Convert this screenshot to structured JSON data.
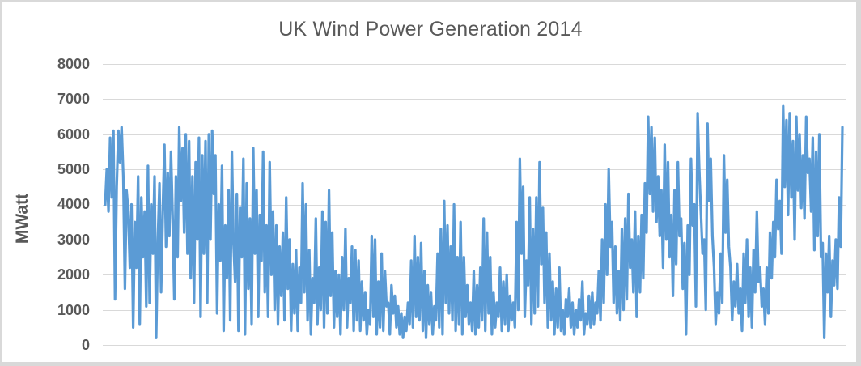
{
  "chart_data": {
    "type": "line",
    "title": "UK Wind Power Generation 2014",
    "xlabel": "",
    "ylabel": "MWatt",
    "ylim": [
      0,
      8000
    ],
    "yticks": [
      0,
      1000,
      2000,
      3000,
      4000,
      5000,
      6000,
      7000,
      8000
    ],
    "grid": true,
    "legend": "none",
    "line_color": "#5b9bd5",
    "x_description": "Time through 2014 (Jan to Dec), no x tick labels shown",
    "series": [
      {
        "name": "MWatt",
        "values": [
          4000,
          5000,
          3800,
          5900,
          4200,
          6100,
          1300,
          4500,
          6100,
          5200,
          6200,
          4800,
          1600,
          4400,
          3800,
          2200,
          4000,
          500,
          3500,
          2200,
          4800,
          600,
          4200,
          2500,
          3800,
          1100,
          5100,
          1200,
          4000,
          2600,
          4800,
          200,
          3000,
          4600,
          1500,
          3800,
          5700,
          2800,
          4900,
          3100,
          5500,
          3600,
          1300,
          4800,
          2500,
          6200,
          4100,
          5600,
          3200,
          6000,
          2600,
          5800,
          1900,
          4800,
          1200,
          5200,
          3000,
          5900,
          800,
          5400,
          2600,
          5800,
          1200,
          6000,
          3000,
          6100,
          4300,
          5400,
          900,
          4000,
          2400,
          5100,
          400,
          3400,
          1900,
          4400,
          700,
          5500,
          2900,
          1800,
          4300,
          400,
          3900,
          2500,
          5300,
          300,
          4600,
          1600,
          3600,
          600,
          5600,
          2600,
          4400,
          800,
          3700,
          2400,
          5500,
          1500,
          3400,
          800,
          5200,
          2000,
          3800,
          1000,
          3400,
          600,
          2800,
          1400,
          3200,
          700,
          4200,
          1600,
          3000,
          400,
          2300,
          900,
          2700,
          400,
          2200,
          1200,
          4600,
          1500,
          4000,
          700,
          2700,
          300,
          1900,
          1200,
          3600,
          600,
          2200,
          1000,
          3800,
          500,
          3500,
          900,
          4400,
          1400,
          3200,
          500,
          2100,
          800,
          2000,
          300,
          2500,
          1000,
          3300,
          500,
          1900,
          1200,
          2800,
          400,
          2700,
          700,
          2400,
          400,
          1800,
          700,
          1500,
          300,
          1000,
          600,
          3100,
          800,
          3000,
          300,
          1800,
          500,
          2600,
          400,
          2100,
          1100,
          1200,
          300,
          1700,
          900,
          1400,
          500,
          1100,
          300,
          900,
          200,
          800,
          400,
          1200,
          600,
          2400,
          500,
          3100,
          800,
          2500,
          700,
          2900,
          400,
          2100,
          200,
          1700,
          600,
          1500,
          300,
          1100,
          700,
          2600,
          500,
          3300,
          300,
          4100,
          1200,
          3400,
          900,
          2800,
          700,
          4000,
          400,
          2500,
          600,
          3500,
          300,
          2500,
          800,
          1700,
          600,
          1200,
          400,
          2100,
          300,
          1700,
          500,
          2200,
          700,
          3600,
          400,
          3200,
          900,
          2500,
          300,
          1500,
          500,
          1200,
          800,
          2200,
          400,
          1800,
          600,
          2000,
          400,
          1400,
          700,
          1200,
          500,
          3500,
          1000,
          5300,
          2600,
          4500,
          800,
          2400,
          1700,
          4200,
          600,
          3300,
          900,
          4200,
          1100,
          5200,
          2300,
          3900,
          1200,
          3200,
          500,
          2600,
          700,
          1800,
          300,
          1600,
          500,
          2200,
          400,
          1000,
          300,
          1300,
          800,
          1600,
          500,
          1200,
          300,
          1000,
          500,
          1300,
          700,
          1800,
          300,
          900,
          600,
          1400,
          500,
          1500,
          600,
          1200,
          900,
          2100,
          700,
          3000,
          1200,
          4000,
          2000,
          5000,
          2800,
          3500,
          1200,
          2800,
          900,
          2100,
          700,
          3300,
          1000,
          3600,
          1300,
          4300,
          2200,
          3000,
          1500,
          3800,
          800,
          3100,
          1500,
          3700,
          1900,
          4600,
          3200,
          6500,
          4300,
          6200,
          3800,
          5900,
          3500,
          4800,
          3100,
          4400,
          2200,
          5700,
          3000,
          5200,
          2500,
          3700,
          1400,
          4400,
          2300,
          5200,
          3100,
          3600,
          1600,
          2900,
          300,
          3400,
          2000,
          5300,
          3400,
          4000,
          1100,
          6600,
          5000,
          3800,
          2600,
          3000,
          1000,
          6300,
          4100,
          5300,
          3100,
          2200,
          600,
          1500,
          900,
          2600,
          1200,
          5400,
          3200,
          4700,
          2800,
          2200,
          700,
          1800,
          1100,
          2300,
          900,
          1600,
          400,
          2600,
          1200,
          3000,
          800,
          2200,
          500,
          2700,
          1500,
          3800,
          1800,
          2200,
          1100,
          1600,
          600,
          2200,
          900,
          3200,
          1900,
          3500,
          2500,
          4700,
          3300,
          4100,
          2600,
          6800,
          4500,
          6400,
          3700,
          6600,
          4200,
          5800,
          3000,
          6500,
          4400,
          6000,
          3900,
          5400,
          3600,
          6500,
          4900,
          5300,
          3800,
          5900,
          2700,
          5500,
          3100,
          6000,
          2500,
          2900,
          200,
          2600,
          1500,
          3100,
          800,
          2400,
          1700,
          3000,
          1600,
          4200,
          2800,
          6200
        ]
      }
    ]
  },
  "title": "UK Wind Power Generation 2014",
  "y_axis": {
    "label": "MWatt",
    "ticks": [
      "0",
      "1000",
      "2000",
      "3000",
      "4000",
      "5000",
      "6000",
      "7000",
      "8000"
    ]
  }
}
